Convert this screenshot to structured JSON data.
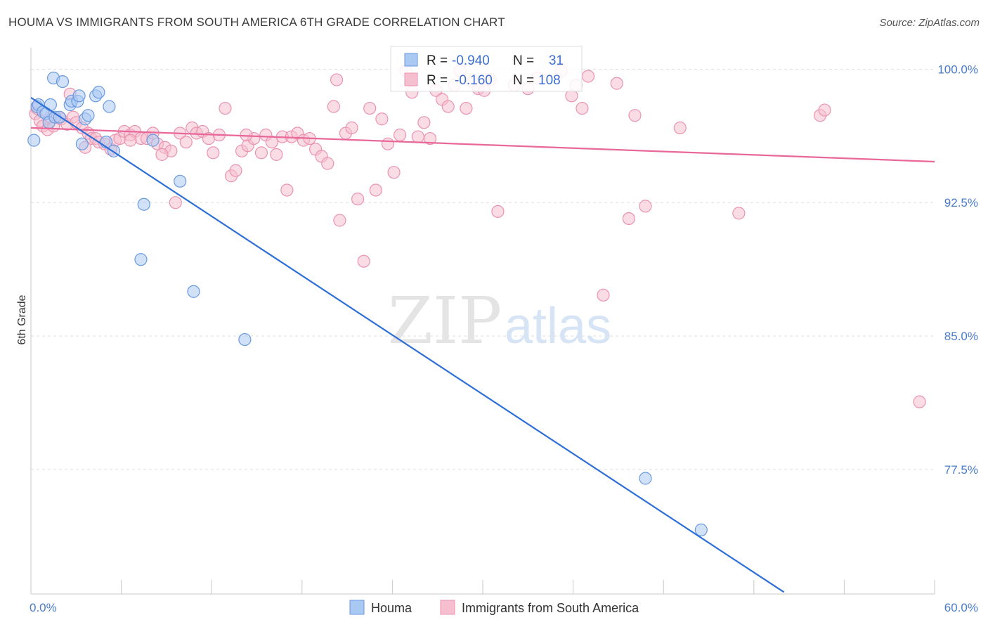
{
  "title": "HOUMA VS IMMIGRANTS FROM SOUTH AMERICA 6TH GRADE CORRELATION CHART",
  "source": "Source: ZipAtlas.com",
  "watermark": {
    "zip": "ZIP",
    "atlas": "atlas"
  },
  "colors": {
    "houma_fill": "#a9c8f2",
    "houma_stroke": "#6a9ae0",
    "houma_line": "#2d6fd6",
    "imm_fill": "#f6bfd0",
    "imm_stroke": "#ea93b0",
    "imm_line": "#e8689a",
    "grid": "#dddddd",
    "tick_text": "#4a7cc9"
  },
  "chart_data": {
    "type": "scatter",
    "title": "HOUMA VS IMMIGRANTS FROM SOUTH AMERICA 6TH GRADE CORRELATION CHART",
    "xlabel": "",
    "ylabel": "6th Grade",
    "xlim": [
      0,
      60
    ],
    "ylim": [
      70.5,
      101.2
    ],
    "x_tick_labels": [
      "0.0%",
      "60.0%"
    ],
    "y_ticks": [
      {
        "value": 100.0,
        "label": "100.0%"
      },
      {
        "value": 92.5,
        "label": "92.5%"
      },
      {
        "value": 85.0,
        "label": "85.0%"
      },
      {
        "value": 77.5,
        "label": "77.5%"
      }
    ],
    "grid": true,
    "legend": [
      {
        "name": "Houma",
        "swatch": "blue"
      },
      {
        "name": "Immigrants from South America",
        "swatch": "pink"
      }
    ],
    "stats": [
      {
        "series": "Houma",
        "r_label": "R =",
        "r": "-0.940",
        "n_label": "N =",
        "n": "31"
      },
      {
        "series": "Immigrants from South America",
        "r_label": "R =",
        "r": "-0.160",
        "n_label": "N =",
        "n": "108"
      }
    ],
    "series": [
      {
        "name": "Houma",
        "color": "blue",
        "trend": {
          "x0": 0.0,
          "y0": 98.4,
          "x1": 50.0,
          "y1": 70.6
        },
        "points": [
          [
            0.2,
            96.0
          ],
          [
            0.4,
            97.9
          ],
          [
            0.5,
            98.0
          ],
          [
            0.8,
            97.6
          ],
          [
            1.0,
            97.5
          ],
          [
            1.2,
            97.0
          ],
          [
            1.3,
            98.0
          ],
          [
            1.5,
            99.5
          ],
          [
            1.6,
            97.3
          ],
          [
            1.9,
            97.3
          ],
          [
            2.1,
            99.3
          ],
          [
            2.6,
            98.0
          ],
          [
            2.7,
            98.2
          ],
          [
            3.1,
            98.2
          ],
          [
            3.2,
            98.5
          ],
          [
            3.6,
            97.2
          ],
          [
            3.8,
            97.4
          ],
          [
            4.3,
            98.5
          ],
          [
            4.5,
            98.7
          ],
          [
            5.0,
            95.9
          ],
          [
            5.2,
            97.9
          ],
          [
            5.5,
            95.4
          ],
          [
            7.3,
            89.3
          ],
          [
            7.5,
            92.4
          ],
          [
            8.1,
            96.0
          ],
          [
            9.9,
            93.7
          ],
          [
            10.8,
            87.5
          ],
          [
            14.2,
            84.8
          ],
          [
            40.8,
            77.0
          ],
          [
            44.5,
            74.1
          ],
          [
            3.4,
            95.8
          ]
        ]
      },
      {
        "name": "Immigrants from South America",
        "color": "pink",
        "trend": {
          "x0": 0.0,
          "y0": 96.7,
          "x1": 60.0,
          "y1": 94.8
        },
        "points": [
          [
            0.3,
            97.5
          ],
          [
            0.4,
            97.8
          ],
          [
            0.6,
            97.1
          ],
          [
            0.8,
            96.8
          ],
          [
            1.1,
            96.6
          ],
          [
            1.3,
            97.3
          ],
          [
            1.5,
            96.8
          ],
          [
            2.0,
            97.2
          ],
          [
            2.4,
            96.9
          ],
          [
            2.8,
            97.3
          ],
          [
            3.0,
            97.0
          ],
          [
            3.4,
            96.7
          ],
          [
            3.8,
            96.4
          ],
          [
            4.0,
            96.1
          ],
          [
            4.3,
            96.1
          ],
          [
            4.5,
            95.9
          ],
          [
            4.9,
            95.8
          ],
          [
            5.3,
            95.5
          ],
          [
            5.6,
            96.0
          ],
          [
            5.9,
            96.1
          ],
          [
            6.2,
            96.5
          ],
          [
            6.6,
            96.3
          ],
          [
            6.9,
            96.5
          ],
          [
            7.3,
            96.1
          ],
          [
            7.7,
            96.1
          ],
          [
            8.1,
            96.4
          ],
          [
            8.4,
            95.8
          ],
          [
            8.9,
            95.6
          ],
          [
            9.3,
            95.4
          ],
          [
            9.6,
            92.5
          ],
          [
            9.9,
            96.4
          ],
          [
            10.3,
            95.9
          ],
          [
            10.7,
            96.7
          ],
          [
            11.0,
            96.4
          ],
          [
            11.4,
            96.5
          ],
          [
            11.8,
            96.1
          ],
          [
            12.1,
            95.3
          ],
          [
            12.5,
            96.3
          ],
          [
            12.9,
            97.8
          ],
          [
            13.3,
            94.0
          ],
          [
            13.6,
            94.3
          ],
          [
            14.0,
            95.4
          ],
          [
            14.4,
            95.7
          ],
          [
            14.8,
            96.1
          ],
          [
            15.3,
            95.3
          ],
          [
            15.6,
            96.3
          ],
          [
            16.0,
            95.9
          ],
          [
            16.3,
            95.2
          ],
          [
            16.7,
            96.2
          ],
          [
            17.0,
            93.2
          ],
          [
            17.3,
            96.2
          ],
          [
            17.7,
            96.4
          ],
          [
            18.1,
            96.0
          ],
          [
            18.5,
            96.1
          ],
          [
            18.9,
            95.5
          ],
          [
            19.3,
            95.1
          ],
          [
            19.7,
            94.7
          ],
          [
            20.1,
            97.9
          ],
          [
            20.5,
            91.5
          ],
          [
            20.9,
            96.4
          ],
          [
            21.3,
            96.7
          ],
          [
            21.7,
            92.7
          ],
          [
            22.1,
            89.2
          ],
          [
            22.5,
            97.8
          ],
          [
            22.9,
            93.2
          ],
          [
            23.3,
            97.2
          ],
          [
            23.7,
            95.8
          ],
          [
            24.1,
            94.2
          ],
          [
            24.5,
            96.3
          ],
          [
            24.9,
            99.9
          ],
          [
            25.3,
            98.7
          ],
          [
            25.7,
            96.2
          ],
          [
            26.1,
            97.0
          ],
          [
            26.5,
            96.1
          ],
          [
            26.9,
            98.8
          ],
          [
            27.3,
            98.3
          ],
          [
            27.7,
            97.9
          ],
          [
            28.1,
            99.1
          ],
          [
            28.5,
            99.9
          ],
          [
            28.9,
            97.8
          ],
          [
            29.3,
            99.3
          ],
          [
            29.7,
            98.9
          ],
          [
            30.1,
            98.8
          ],
          [
            30.5,
            99.4
          ],
          [
            31.0,
            92.0
          ],
          [
            32.1,
            99.1
          ],
          [
            33.0,
            98.9
          ],
          [
            33.6,
            99.5
          ],
          [
            35.2,
            99.9
          ],
          [
            35.9,
            98.5
          ],
          [
            36.2,
            99.1
          ],
          [
            36.6,
            97.8
          ],
          [
            37.0,
            99.6
          ],
          [
            38.0,
            87.3
          ],
          [
            38.9,
            99.2
          ],
          [
            39.7,
            91.6
          ],
          [
            40.1,
            97.4
          ],
          [
            40.8,
            92.3
          ],
          [
            43.1,
            96.7
          ],
          [
            47.0,
            91.9
          ],
          [
            52.4,
            97.4
          ],
          [
            52.7,
            97.7
          ],
          [
            59.0,
            81.3
          ],
          [
            20.3,
            99.4
          ],
          [
            6.6,
            96.0
          ],
          [
            2.6,
            98.6
          ],
          [
            8.7,
            95.2
          ],
          [
            14.3,
            96.3
          ],
          [
            3.6,
            95.6
          ]
        ]
      }
    ]
  }
}
